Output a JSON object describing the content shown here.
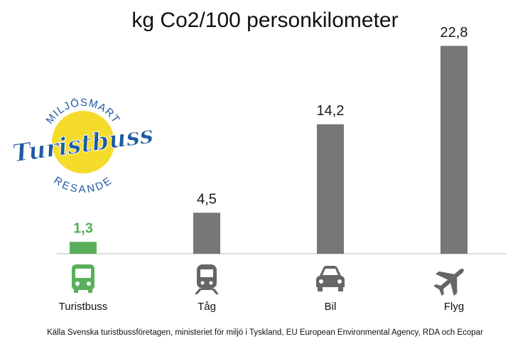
{
  "chart_data": {
    "type": "bar",
    "title": "kg Co2/100 personkilometer",
    "categories": [
      "Turistbuss",
      "Tåg",
      "Bil",
      "Flyg"
    ],
    "values": [
      1.3,
      4.5,
      14.2,
      22.8
    ],
    "value_labels": [
      "1,3",
      "4,5",
      "14,2",
      "22,8"
    ],
    "colors": [
      "#5aaf5a",
      "#777777",
      "#777777",
      "#777777"
    ],
    "value_label_colors": [
      "#5aaf5a",
      "#1a1a1a",
      "#1a1a1a",
      "#1a1a1a"
    ],
    "ylim": [
      0,
      23
    ],
    "source": "Källa Svenska turistbussföretagen, ministeriet för miljö i Tyskland, EU European Environmental Agency, RDA och Ecopar",
    "logo": {
      "top": "MILJÖSMART",
      "middle": "Turistbuss",
      "bottom": "RESANDE"
    }
  }
}
